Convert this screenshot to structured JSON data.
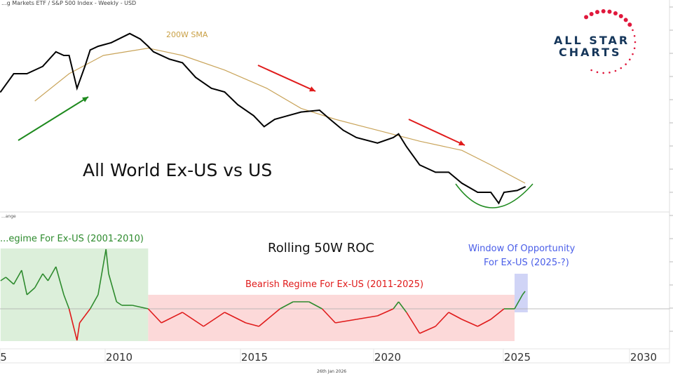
{
  "header": {
    "title": "...g Markets ETF / S&P 500 Index - Weekly - USD",
    "date": "26th Jan 2026"
  },
  "logo": {
    "line1": "ALL STAR",
    "line2": "CHARTS",
    "color": "#15365a",
    "star_color": "#e0183c"
  },
  "chart_data": [
    {
      "type": "line",
      "title": "All World Ex-US vs US",
      "note": "y-axis not shown; values are relative",
      "series": [
        {
          "name": "200W SMA",
          "color": "#c9a45a",
          "x": [
            2006.8,
            2008.1,
            2009.4,
            2011.1,
            2012.4,
            2014.0,
            2015.6,
            2016.9,
            2018.2,
            2019.8,
            2021.4,
            2023.0,
            2024.1,
            2025.4
          ],
          "y": [
            60,
            75,
            85,
            89,
            85,
            77,
            67,
            56,
            50,
            44,
            38,
            33,
            25,
            15
          ]
        },
        {
          "name": "price",
          "color": "#000000",
          "x": [
            2005.5,
            2006.0,
            2006.5,
            2007.1,
            2007.6,
            2007.9,
            2008.1,
            2008.4,
            2008.7,
            2008.9,
            2009.2,
            2009.7,
            2010.4,
            2010.8,
            2011.1,
            2011.3,
            2011.9,
            2012.4,
            2012.9,
            2013.5,
            2014.0,
            2014.5,
            2015.1,
            2015.5,
            2015.9,
            2016.4,
            2016.9,
            2017.6,
            2018.0,
            2018.5,
            2019.0,
            2019.8,
            2020.4,
            2020.6,
            2020.9,
            2021.4,
            2022.0,
            2022.5,
            2023.0,
            2023.6,
            2024.1,
            2024.4,
            2024.6,
            2025.1,
            2025.4
          ],
          "y": [
            65,
            75,
            75,
            79,
            87,
            85,
            85,
            67,
            79,
            88,
            90,
            92,
            97,
            94,
            90,
            87,
            83,
            81,
            73,
            67,
            65,
            58,
            52,
            46,
            50,
            52,
            54,
            55,
            50,
            44,
            40,
            37,
            40,
            42,
            35,
            25,
            21,
            21,
            15,
            10,
            10,
            4,
            10,
            11,
            13
          ]
        }
      ],
      "annotations": {
        "sma_label": "200W SMA"
      }
    },
    {
      "type": "line",
      "title": "Rolling 50W ROC",
      "panel_label": "...ange",
      "x_ticks": [
        "5",
        "2010",
        "2015",
        "2020",
        "2025",
        "2030"
      ],
      "x": [
        2005.5,
        2005.7,
        2006.0,
        2006.3,
        2006.5,
        2006.8,
        2007.1,
        2007.3,
        2007.6,
        2007.9,
        2008.1,
        2008.4,
        2008.5,
        2008.7,
        2008.9,
        2009.2,
        2009.5,
        2009.6,
        2009.9,
        2010.1,
        2010.5,
        2011.1,
        2011.6,
        2012.4,
        2013.2,
        2014.0,
        2014.8,
        2015.3,
        2016.1,
        2016.6,
        2017.2,
        2017.7,
        2018.2,
        2019.0,
        2019.8,
        2020.4,
        2020.6,
        2020.9,
        2021.4,
        2022.0,
        2022.5,
        2023.0,
        2023.6,
        2024.1,
        2024.6,
        2025.0,
        2025.3,
        2025.4
      ],
      "y": [
        20,
        22.5,
        17.5,
        27.5,
        10,
        15,
        25,
        20,
        30,
        10,
        0,
        -22.5,
        -10,
        -5,
        0,
        10,
        42.5,
        25,
        5,
        2.5,
        2.5,
        0,
        -10,
        -2.5,
        -12.5,
        -2.5,
        -10,
        -12.5,
        0,
        5,
        5,
        0,
        -10,
        -7.5,
        -5,
        0,
        5,
        -2.5,
        -17.5,
        -12.5,
        -2.5,
        -7.5,
        -12.5,
        -7.5,
        0,
        0,
        10,
        12.5
      ],
      "up_color": "#2e8b2e",
      "down_color": "#e01b1b",
      "regions": [
        {
          "label": "...egime For Ex-US (2001-2010)",
          "from": 2005.5,
          "to": 2011.1,
          "ymin": -23,
          "ymax": 43,
          "color": "#d6ecd3",
          "text_color": "#2e8b2e"
        },
        {
          "label": "Bearish Regime For Ex-US (2011-2025)",
          "from": 2011.1,
          "to": 2025.0,
          "ymin": -23,
          "ymax": 10,
          "color": "#fcd2d2",
          "text_color": "#e01b1b"
        },
        {
          "label1": "Window Of Opportunity",
          "label2": "For Ex-US (2025-?)",
          "from": 2025.0,
          "to": 2025.5,
          "ymin": -2.5,
          "ymax": 25,
          "color": "#c8ccf4",
          "text_color": "#4a5ee8"
        }
      ]
    }
  ]
}
